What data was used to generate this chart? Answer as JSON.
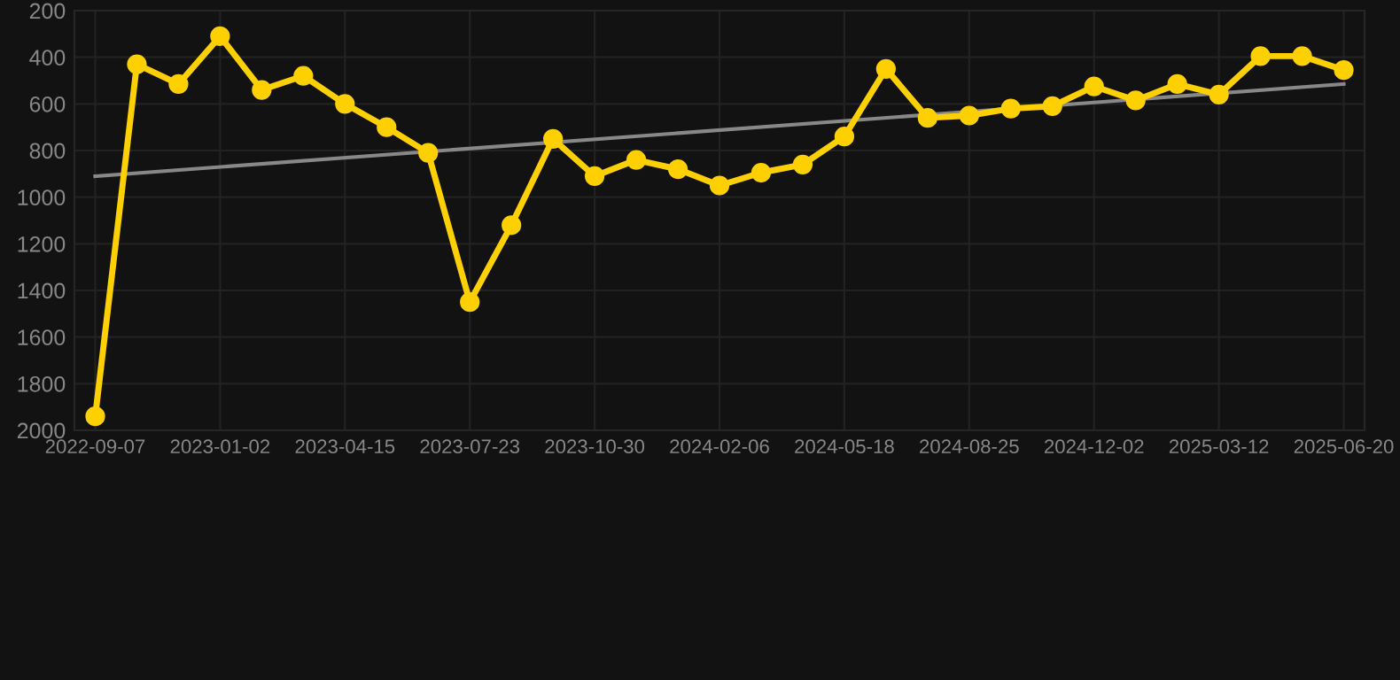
{
  "chart_data": {
    "type": "line",
    "categories": [
      "2022-09-07",
      null,
      null,
      "2023-01-02",
      null,
      null,
      "2023-04-15",
      null,
      null,
      "2023-07-23",
      null,
      null,
      "2023-10-30",
      null,
      null,
      "2024-02-06",
      null,
      null,
      "2024-05-18",
      null,
      null,
      "2024-08-25",
      null,
      null,
      "2024-12-02",
      null,
      null,
      "2025-03-12",
      null,
      null,
      "2025-06-20"
    ],
    "series": [
      {
        "color": "#ffd000",
        "marker": "circle",
        "values": [
          1940,
          430,
          515,
          310,
          540,
          480,
          600,
          700,
          810,
          1450,
          1120,
          750,
          910,
          840,
          880,
          950,
          895,
          860,
          740,
          450,
          660,
          650,
          620,
          610,
          525,
          585,
          515,
          560,
          395,
          395,
          455
        ]
      },
      {
        "type": "line",
        "color": "#888888",
        "marker": "none",
        "values": [
          910,
          null,
          null,
          null,
          null,
          null,
          null,
          null,
          null,
          null,
          null,
          null,
          null,
          null,
          null,
          null,
          null,
          null,
          null,
          null,
          null,
          null,
          null,
          null,
          null,
          null,
          null,
          null,
          null,
          null,
          515
        ]
      }
    ],
    "ylim": [
      2000,
      200
    ],
    "yticks": [
      200,
      400,
      600,
      800,
      1000,
      1200,
      1400,
      1600,
      1800,
      2000
    ],
    "grid": true,
    "line_style": "solid"
  }
}
